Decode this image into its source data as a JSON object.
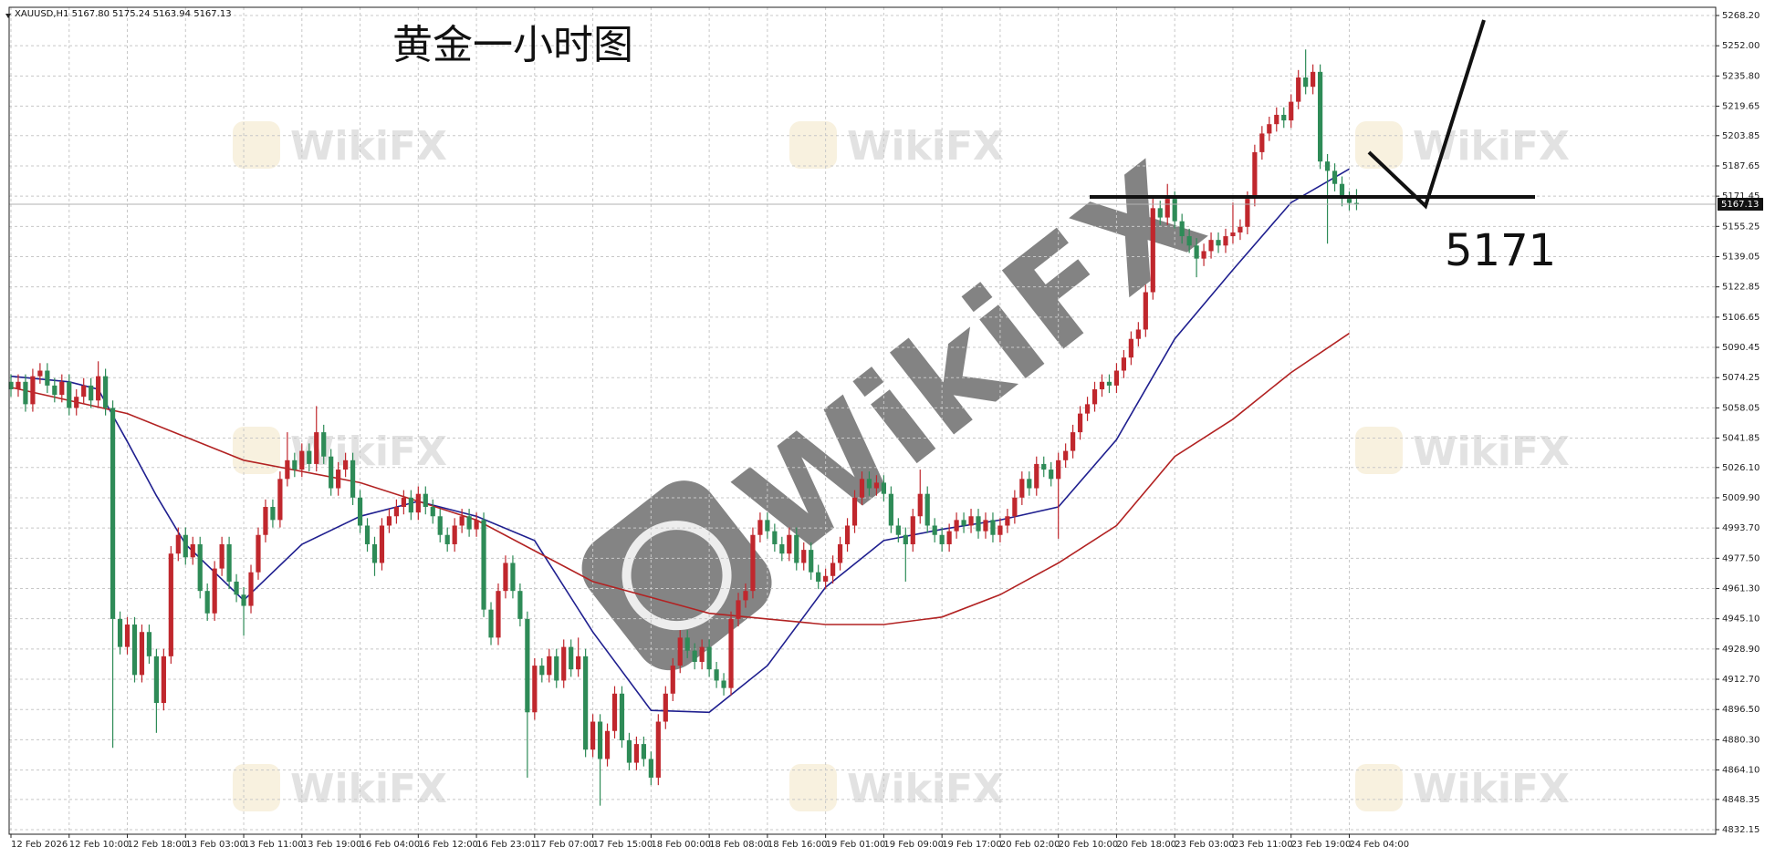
{
  "header": "XAUUSD,H1  5167.80 5175.24 5163.94 5167.13",
  "title": "黄金一小时图",
  "watermark": "WikiFX",
  "chart_data": {
    "type": "candlestick",
    "categories": [
      "12 Feb 2026",
      null,
      null,
      null,
      null,
      null,
      null,
      null,
      "12 Feb 10:00",
      null,
      null,
      null,
      null,
      null,
      null,
      null,
      "12 Feb 18:00",
      null,
      null,
      null,
      null,
      null,
      null,
      null,
      "13 Feb 03:00",
      null,
      null,
      null,
      null,
      null,
      null,
      null,
      "13 Feb 11:00",
      null,
      null,
      null,
      null,
      null,
      null,
      null,
      "13 Feb 19:00",
      null,
      null,
      null,
      null,
      null,
      null,
      null,
      "16 Feb 04:00",
      null,
      null,
      null,
      null,
      null,
      null,
      null,
      "16 Feb 12:00",
      null,
      null,
      null,
      null,
      null,
      null,
      null,
      "16 Feb 23:01",
      null,
      null,
      null,
      null,
      null,
      null,
      null,
      "17 Feb 07:00",
      null,
      null,
      null,
      null,
      null,
      null,
      null,
      "17 Feb 15:00",
      null,
      null,
      null,
      null,
      null,
      null,
      null,
      "18 Feb 00:00",
      null,
      null,
      null,
      null,
      null,
      null,
      null,
      "18 Feb 08:00",
      null,
      null,
      null,
      null,
      null,
      null,
      null,
      "18 Feb 16:00",
      null,
      null,
      null,
      null,
      null,
      null,
      null,
      "19 Feb 01:00",
      null,
      null,
      null,
      null,
      null,
      null,
      null,
      "19 Feb 09:00",
      null,
      null,
      null,
      null,
      null,
      null,
      null,
      "19 Feb 17:00",
      null,
      null,
      null,
      null,
      null,
      null,
      null,
      "20 Feb 02:00",
      null,
      null,
      null,
      null,
      null,
      null,
      null,
      "20 Feb 10:00",
      null,
      null,
      null,
      null,
      null,
      null,
      null,
      "20 Feb 18:00",
      null,
      null,
      null,
      null,
      null,
      null,
      null,
      "23 Feb 03:00",
      null,
      null,
      null,
      null,
      null,
      null,
      null,
      "23 Feb 11:00",
      null,
      null,
      null,
      null,
      null,
      null,
      null,
      "23 Feb 19:00",
      null,
      null,
      null,
      null,
      null,
      null,
      null,
      "24 Feb 04:00",
      null
    ],
    "open": [
      5072,
      5068,
      5072,
      5060,
      5075,
      5078,
      5070,
      5065,
      5072,
      5058,
      5064,
      5070,
      5062,
      5075,
      5058,
      4945,
      4930,
      4942,
      4915,
      4938,
      4925,
      4900,
      4925,
      4980,
      4990,
      4978,
      4985,
      4960,
      4948,
      4972,
      4985,
      4965,
      4958,
      4952,
      4970,
      4990,
      5005,
      4998,
      5020,
      5030,
      5025,
      5035,
      5028,
      5045,
      5032,
      5015,
      5025,
      5030,
      5010,
      4995,
      4985,
      4975,
      4995,
      5000,
      5005,
      5010,
      5002,
      5012,
      5005,
      5000,
      4990,
      4985,
      4995,
      5000,
      4993,
      4998,
      4950,
      4935,
      4960,
      4975,
      4960,
      4945,
      4895,
      4920,
      4915,
      4925,
      4912,
      4930,
      4918,
      4925,
      4875,
      4890,
      4870,
      4885,
      4905,
      4880,
      4868,
      4878,
      4870,
      4860,
      4890,
      4905,
      4920,
      4935,
      4928,
      4922,
      4930,
      4918,
      4912,
      4908,
      4945,
      4955,
      4960,
      4990,
      4998,
      4992,
      4985,
      4980,
      4990,
      4975,
      4982,
      4970,
      4965,
      4968,
      4975,
      4985,
      4995,
      5010,
      5020,
      5015,
      5018,
      5012,
      4995,
      4990,
      4985,
      5000,
      5012,
      4995,
      4990,
      4985,
      4992,
      4998,
      4995,
      5000,
      4992,
      4998,
      4990,
      4995,
      5000,
      5010,
      5020,
      5015,
      5028,
      5025,
      5020,
      5030,
      5035,
      5045,
      5055,
      5060,
      5068,
      5072,
      5070,
      5078,
      5085,
      5095,
      5100,
      5120,
      5165,
      5160,
      5170,
      5158,
      5150,
      5145,
      5138,
      5142,
      5148,
      5145,
      5150,
      5152,
      5155,
      5170,
      5195,
      5205,
      5210,
      5215,
      5212,
      5222,
      5235,
      5230,
      5238,
      5190,
      5185,
      5178,
      5170,
      5167.8
    ],
    "high": [
      5076,
      5076,
      5076,
      5079,
      5082,
      5082,
      5074,
      5076,
      5076,
      5068,
      5074,
      5074,
      5083,
      5079,
      5062,
      4949,
      4946,
      4946,
      4942,
      4942,
      4929,
      4929,
      4984,
      4994,
      4994,
      4989,
      4989,
      4964,
      4976,
      4989,
      4989,
      4969,
      4962,
      4974,
      4994,
      5009,
      5009,
      5024,
      5045,
      5034,
      5039,
      5039,
      5059,
      5049,
      5036,
      5029,
      5034,
      5034,
      5014,
      4999,
      4989,
      4999,
      5004,
      5009,
      5014,
      5014,
      5016,
      5016,
      5009,
      5004,
      4994,
      4999,
      5004,
      5004,
      5002,
      5002,
      4954,
      4964,
      4979,
      4979,
      4964,
      4949,
      4924,
      4924,
      4929,
      4929,
      4934,
      4934,
      4935,
      4929,
      4894,
      4894,
      4889,
      4909,
      4909,
      4884,
      4882,
      4882,
      4874,
      4894,
      4909,
      4924,
      4939,
      4939,
      4932,
      4934,
      4934,
      4922,
      4916,
      4949,
      4959,
      4964,
      4994,
      5002,
      5002,
      4996,
      4989,
      4994,
      4994,
      4986,
      4986,
      4974,
      4972,
      4979,
      4989,
      4999,
      5014,
      5024,
      5024,
      5022,
      5022,
      5016,
      4999,
      4994,
      5004,
      5025,
      5016,
      4999,
      4994,
      4996,
      5002,
      5002,
      5004,
      5004,
      5002,
      5002,
      4999,
      5004,
      5014,
      5024,
      5024,
      5032,
      5032,
      5029,
      5034,
      5039,
      5049,
      5059,
      5064,
      5072,
      5076,
      5076,
      5082,
      5089,
      5099,
      5104,
      5124,
      5172,
      5169,
      5178,
      5174,
      5162,
      5154,
      5149,
      5146,
      5152,
      5152,
      5154,
      5168,
      5159,
      5174,
      5199,
      5209,
      5214,
      5219,
      5219,
      5226,
      5239,
      5250,
      5242,
      5242,
      5194,
      5189,
      5182,
      5174,
      5175.24
    ],
    "low": [
      5064,
      5064,
      5056,
      5056,
      5071,
      5066,
      5061,
      5061,
      5054,
      5054,
      5060,
      5058,
      5058,
      5054,
      4876,
      4926,
      4926,
      4911,
      4911,
      4921,
      4884,
      4896,
      4921,
      4976,
      4974,
      4974,
      4956,
      4944,
      4944,
      4968,
      4961,
      4954,
      4936,
      4948,
      4966,
      4986,
      4994,
      4994,
      5016,
      5021,
      5021,
      5024,
      5024,
      5028,
      5011,
      5011,
      5021,
      5006,
      4991,
      4981,
      4968,
      4971,
      4991,
      4996,
      5001,
      4998,
      4998,
      5001,
      4996,
      4986,
      4981,
      4981,
      4991,
      4989,
      4989,
      4946,
      4931,
      4931,
      4956,
      4956,
      4941,
      4860,
      4891,
      4911,
      4911,
      4908,
      4908,
      4914,
      4914,
      4871,
      4871,
      4845,
      4866,
      4881,
      4876,
      4864,
      4864,
      4866,
      4856,
      4856,
      4886,
      4901,
      4916,
      4924,
      4918,
      4918,
      4914,
      4908,
      4904,
      4904,
      4941,
      4951,
      4956,
      4986,
      4988,
      4981,
      4976,
      4976,
      4971,
      4971,
      4966,
      4961,
      4961,
      4964,
      4971,
      4981,
      4991,
      5006,
      5011,
      5011,
      5008,
      4991,
      4986,
      4965,
      4981,
      4996,
      4991,
      4986,
      4981,
      4981,
      4988,
      4991,
      4991,
      4988,
      4988,
      4986,
      4986,
      4991,
      4996,
      5006,
      5011,
      5011,
      5021,
      5016,
      4988,
      5026,
      5031,
      5041,
      5051,
      5056,
      5064,
      5066,
      5066,
      5074,
      5081,
      5091,
      5096,
      5116,
      5156,
      5156,
      5154,
      5146,
      5141,
      5128,
      5134,
      5138,
      5141,
      5141,
      5146,
      5148,
      5151,
      5166,
      5191,
      5201,
      5206,
      5208,
      5208,
      5218,
      5226,
      5226,
      5186,
      5146,
      5174,
      5166,
      5163.8,
      5163.94
    ],
    "close": [
      5068,
      5072,
      5060,
      5075,
      5078,
      5070,
      5065,
      5072,
      5058,
      5064,
      5070,
      5062,
      5075,
      5058,
      4945,
      4930,
      4942,
      4915,
      4938,
      4925,
      4900,
      4925,
      4980,
      4990,
      4978,
      4985,
      4960,
      4948,
      4972,
      4985,
      4965,
      4958,
      4952,
      4970,
      4990,
      5005,
      4998,
      5020,
      5030,
      5025,
      5035,
      5028,
      5045,
      5032,
      5015,
      5025,
      5030,
      5010,
      4995,
      4985,
      4975,
      4995,
      5000,
      5005,
      5010,
      5002,
      5012,
      5005,
      5000,
      4990,
      4985,
      4995,
      5000,
      4993,
      4998,
      4950,
      4935,
      4960,
      4975,
      4960,
      4945,
      4895,
      4920,
      4915,
      4925,
      4912,
      4930,
      4918,
      4925,
      4875,
      4890,
      4870,
      4885,
      4905,
      4880,
      4868,
      4878,
      4870,
      4860,
      4890,
      4905,
      4920,
      4935,
      4928,
      4922,
      4930,
      4918,
      4912,
      4908,
      4945,
      4955,
      4960,
      4990,
      4998,
      4992,
      4985,
      4980,
      4990,
      4975,
      4982,
      4970,
      4965,
      4968,
      4975,
      4985,
      4995,
      5010,
      5020,
      5015,
      5018,
      5012,
      4995,
      4990,
      4985,
      5000,
      5012,
      4995,
      4990,
      4985,
      4992,
      4998,
      4995,
      5000,
      4992,
      4998,
      4990,
      4995,
      5000,
      5010,
      5020,
      5015,
      5028,
      5025,
      5020,
      5030,
      5035,
      5045,
      5055,
      5060,
      5068,
      5072,
      5070,
      5078,
      5085,
      5095,
      5100,
      5120,
      5165,
      5160,
      5170,
      5158,
      5150,
      5145,
      5138,
      5142,
      5148,
      5145,
      5150,
      5152,
      5155,
      5170,
      5195,
      5205,
      5210,
      5215,
      5212,
      5222,
      5235,
      5230,
      5238,
      5190,
      5185,
      5178,
      5170,
      5167.8,
      5167.13
    ],
    "up_color": "#c0272d",
    "down_color": "#2e8b57",
    "overlays": [
      {
        "color": "#1f1f8f",
        "x": [
          0,
          8,
          12,
          16,
          20,
          24,
          32,
          40,
          48,
          56,
          64,
          72,
          80,
          88,
          96,
          104,
          112,
          120,
          128,
          136,
          144,
          152,
          160,
          168,
          176,
          184
        ],
        "values": [
          5075,
          5072,
          5068,
          5040,
          5011,
          4985,
          4955,
          4985,
          5000,
          5008,
          5000,
          4987,
          4938,
          4896,
          4895,
          4920,
          4962,
          4987,
          4993,
          4998,
          5005,
          5041,
          5095,
          5132,
          5168,
          5186
        ]
      },
      {
        "color": "#b22222",
        "x": [
          0,
          16,
          32,
          48,
          64,
          80,
          96,
          104,
          112,
          120,
          128,
          136,
          144,
          152,
          160,
          168,
          176,
          184
        ],
        "values": [
          5069,
          5055,
          5030,
          5018,
          4998,
          4965,
          4948,
          4945,
          4942,
          4942,
          4946,
          4958,
          4975,
          4995,
          5032,
          5052,
          5077,
          5098
        ]
      }
    ],
    "level": 5171,
    "ylim": [
      4832.15,
      5268.2
    ],
    "yticks": [
      {
        "value": 5268.2,
        "label": "5268.20"
      },
      {
        "value": 5252,
        "label": "5252.00"
      },
      {
        "value": 5235.8,
        "label": "5235.80"
      },
      5219.65,
      5203.85,
      5187.65,
      5171.45,
      5155.25,
      5139.05,
      5122.85,
      5106.65,
      5090.45,
      5074.25,
      5058.05,
      5041.85,
      {
        "value": 5026.1,
        "label": "5026.10"
      },
      {
        "value": 5009.9,
        "label": "5009.90"
      },
      {
        "value": 4993.7,
        "label": "4993.70"
      },
      {
        "value": 4977.5,
        "label": "4977.50"
      },
      {
        "value": 4961.3,
        "label": "4961.30"
      },
      {
        "value": 4945.1,
        "label": "4945.10"
      },
      {
        "value": 4928.9,
        "label": "4928.90"
      },
      {
        "value": 4912.7,
        "label": "4912.70"
      },
      {
        "value": 4896.5,
        "label": "4896.50"
      },
      {
        "value": 4880.3,
        "label": "4880.30"
      },
      {
        "value": 4864.1,
        "label": "4864.10"
      },
      4848.35,
      4832.15
    ],
    "grid": true
  }
}
